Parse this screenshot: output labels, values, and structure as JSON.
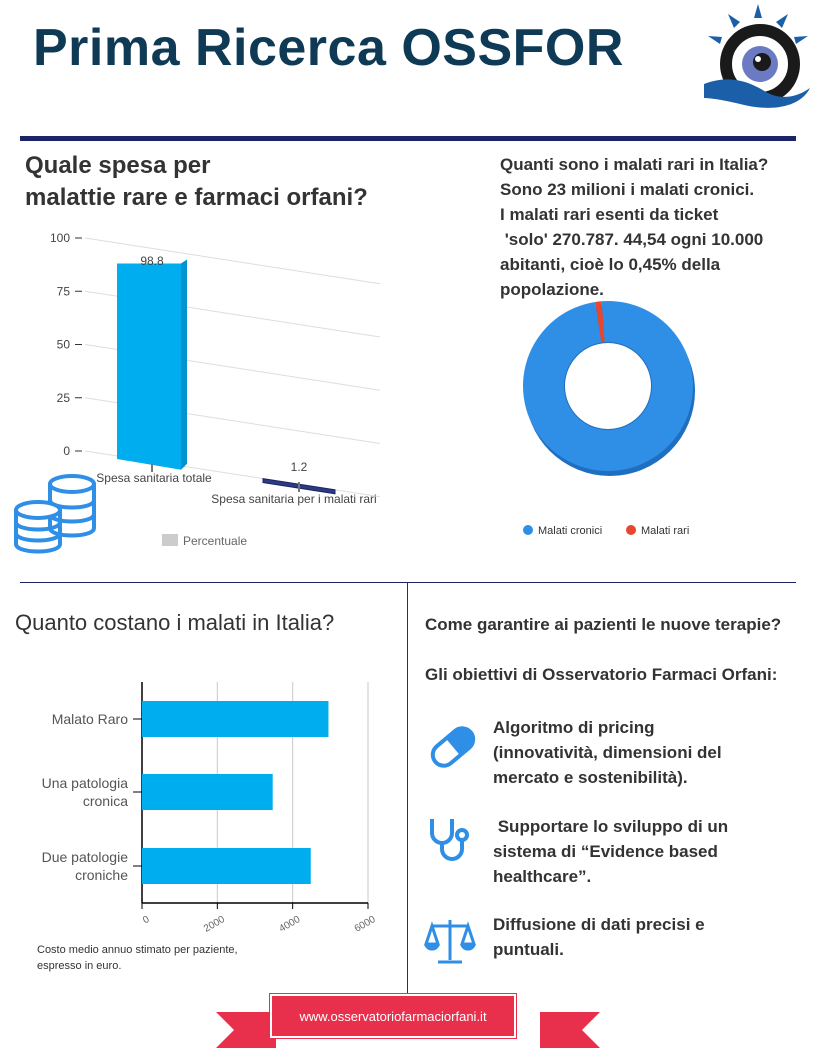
{
  "header": {
    "title": "Prima Ricerca OSSFOR"
  },
  "section1": {
    "title_line1": "Quale spesa per",
    "title_line2": "malattie rare e farmaci orfani?"
  },
  "section2": {
    "lines": [
      "Quanti sono i malati rari in Italia?",
      "Sono 23 milioni i malati cronici.",
      "I malati rari esenti da ticket",
      " 'solo' 270.787. 44,54 ogni 10.000",
      "abitanti, cioè lo 0,45% della",
      "popolazione."
    ]
  },
  "section3": {
    "title": "Quanto costano i malati in Italia?",
    "note_line1": "Costo medio annuo stimato per paziente,",
    "note_line2": "espresso in euro."
  },
  "section4": {
    "heading1": "Come garantire ai pazienti le nuove terapie?",
    "heading2": "Gli obiettivi di Osservatorio Farmaci Orfani:",
    "items": [
      {
        "icon": "pill-icon",
        "lines": [
          "Algoritmo di pricing",
          "(innovatività, dimensioni del",
          "mercato e sostenibilità)."
        ]
      },
      {
        "icon": "stethoscope-icon",
        "lines": [
          " Supportare lo sviluppo di un",
          "sistema di “Evidence based",
          "healthcare”."
        ]
      },
      {
        "icon": "scales-icon",
        "lines": [
          "Diffusione di dati precisi e",
          "puntuali."
        ]
      }
    ]
  },
  "footer": {
    "url": "www.osservatoriofarmaciorfani.it"
  },
  "colors": {
    "title": "#0e3a55",
    "bar": "#00aeef",
    "bar_small": "#2e3a80",
    "pie_main": "#2f8fe6",
    "pie_small": "#e8472f",
    "ribbon": "#e8304c"
  },
  "chart_data": [
    {
      "type": "bar",
      "categories": [
        "Spesa sanitaria totale",
        "Spesa sanitaria per i malati rari"
      ],
      "values": [
        98.8,
        1.2
      ],
      "data_labels": [
        "98.8",
        "1.2"
      ],
      "yticks": [
        "0",
        "25",
        "50",
        "75",
        "100"
      ],
      "ylim": [
        0,
        100
      ],
      "legend": [
        "Percentuale"
      ],
      "legend_position": "bottom",
      "grid": true
    },
    {
      "type": "pie",
      "donut": true,
      "categories": [
        "Malati cronici",
        "Malati rari"
      ],
      "values": [
        98.8,
        1.2
      ],
      "legend_position": "bottom"
    },
    {
      "type": "bar",
      "orientation": "horizontal",
      "categories": [
        "Malato Raro",
        "Una patologia cronica",
        "Due patologie croniche"
      ],
      "category_lines": [
        [
          "Malato Raro"
        ],
        [
          "Una patologia",
          "cronica"
        ],
        [
          "Due patologie",
          "croniche"
        ]
      ],
      "values": [
        4950,
        3470,
        4480
      ],
      "xticks": [
        "0",
        "2000",
        "4000",
        "6000"
      ],
      "xlim": [
        0,
        6000
      ],
      "grid": true
    }
  ]
}
